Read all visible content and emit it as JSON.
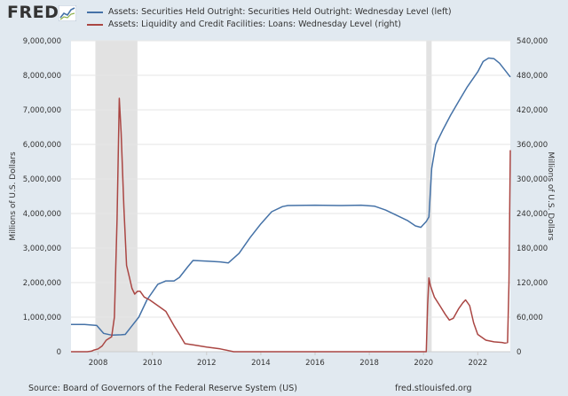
{
  "header": {
    "logo_text": "FRED",
    "logo_icon": "chart-line-icon"
  },
  "footer": {
    "source": "Source: Board of Governors of the Federal Reserve System (US)",
    "url": "fred.stlouisfed.org"
  },
  "colors": {
    "background": "#e1e9f0",
    "plot_background": "#ffffff",
    "recession": "#e2e2e2",
    "series_left": "#4572a7",
    "series_right": "#aa4643"
  },
  "chart_data": {
    "type": "line",
    "grid": true,
    "legend_placement": "top",
    "xlim": [
      2007.0,
      2023.2
    ],
    "x_ticks": [
      2008,
      2010,
      2012,
      2014,
      2016,
      2018,
      2020,
      2022
    ],
    "y_left": {
      "label": "Millions of U.S. Dollars",
      "lim": [
        0,
        9000000
      ],
      "ticks": [
        "0",
        "1,000,000",
        "2,000,000",
        "3,000,000",
        "4,000,000",
        "5,000,000",
        "6,000,000",
        "7,000,000",
        "8,000,000",
        "9,000,000"
      ]
    },
    "y_right": {
      "label": "Millions of U.S. Dollars",
      "lim": [
        0,
        540000
      ],
      "ticks": [
        "0",
        "60,000",
        "120,000",
        "180,000",
        "240,000",
        "300,000",
        "360,000",
        "420,000",
        "480,000",
        "540,000"
      ]
    },
    "recessions": [
      [
        2007.9,
        2009.45
      ],
      [
        2020.1,
        2020.3
      ]
    ],
    "series": [
      {
        "name": "Assets: Securities Held Outright: Securities Held Outright: Wednesday Level (left)",
        "axis": "left",
        "x": [
          2007.0,
          2007.5,
          2007.95,
          2008.2,
          2008.5,
          2008.85,
          2009.0,
          2009.2,
          2009.5,
          2009.8,
          2010.2,
          2010.5,
          2010.8,
          2011.0,
          2011.3,
          2011.5,
          2012.0,
          2012.5,
          2012.8,
          2013.2,
          2013.6,
          2014.0,
          2014.4,
          2014.8,
          2015.0,
          2016.0,
          2017.0,
          2017.7,
          2018.2,
          2018.6,
          2019.0,
          2019.4,
          2019.7,
          2019.9,
          2020.1,
          2020.2,
          2020.3,
          2020.45,
          2020.7,
          2021.0,
          2021.3,
          2021.6,
          2022.0,
          2022.2,
          2022.4,
          2022.6,
          2022.8,
          2023.0,
          2023.2
        ],
        "y": [
          790000,
          790000,
          760000,
          530000,
          480000,
          490000,
          500000,
          700000,
          1000000,
          1500000,
          1950000,
          2050000,
          2050000,
          2150000,
          2450000,
          2640000,
          2620000,
          2600000,
          2570000,
          2850000,
          3300000,
          3700000,
          4050000,
          4200000,
          4230000,
          4240000,
          4230000,
          4240000,
          4210000,
          4100000,
          3950000,
          3800000,
          3640000,
          3600000,
          3770000,
          3900000,
          5300000,
          6000000,
          6400000,
          6850000,
          7250000,
          7650000,
          8100000,
          8400000,
          8500000,
          8480000,
          8350000,
          8150000,
          7950000
        ]
      },
      {
        "name": "Assets: Liquidity and Credit Facilities: Loans: Wednesday Level (right)",
        "axis": "right",
        "x": [
          2007.0,
          2007.6,
          2007.75,
          2007.85,
          2008.0,
          2008.15,
          2008.3,
          2008.5,
          2008.6,
          2008.7,
          2008.78,
          2008.85,
          2008.95,
          2009.05,
          2009.15,
          2009.25,
          2009.35,
          2009.45,
          2009.55,
          2009.7,
          2009.9,
          2010.2,
          2010.5,
          2010.8,
          2011.0,
          2011.2,
          2011.5,
          2012.0,
          2012.5,
          2012.8,
          2013.0,
          2014.0,
          2016.0,
          2018.0,
          2020.0,
          2020.1,
          2020.15,
          2020.2,
          2020.25,
          2020.4,
          2020.6,
          2020.8,
          2020.95,
          2021.1,
          2021.3,
          2021.45,
          2021.55,
          2021.7,
          2021.85,
          2022.0,
          2022.3,
          2022.6,
          2022.9,
          2023.0,
          2023.1,
          2023.15,
          2023.2
        ],
        "y": [
          0,
          0,
          1000,
          3000,
          5000,
          10000,
          20000,
          26000,
          60000,
          230000,
          440000,
          380000,
          250000,
          150000,
          130000,
          110000,
          100000,
          105000,
          105000,
          95000,
          90000,
          80000,
          70000,
          45000,
          30000,
          14000,
          12000,
          8000,
          5000,
          2000,
          0,
          0,
          0,
          0,
          0,
          0,
          80000,
          128000,
          115000,
          95000,
          80000,
          65000,
          55000,
          58000,
          75000,
          85000,
          90000,
          80000,
          50000,
          30000,
          20000,
          17000,
          16000,
          15000,
          16000,
          120000,
          350000
        ]
      }
    ]
  }
}
